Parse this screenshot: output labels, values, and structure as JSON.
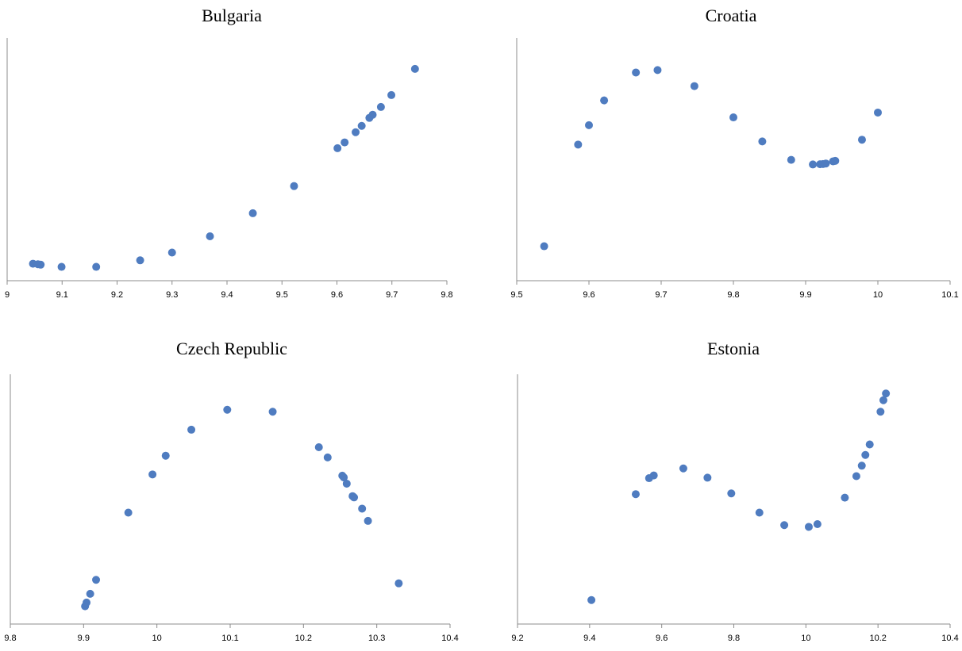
{
  "colors": {
    "point": "#4f7cc0",
    "axis": "#8c8c8c"
  },
  "chart_data": [
    {
      "type": "scatter",
      "title": "Bulgaria",
      "xlim": [
        9,
        9.8
      ],
      "xticks": [
        "9",
        "9.1",
        "9.2",
        "9.3",
        "9.4",
        "9.5",
        "9.6",
        "9.7",
        "9.8"
      ],
      "ylim": [
        0,
        100
      ],
      "y_axis_labels_shown": false,
      "grid": false,
      "x": [
        9.047,
        9.056,
        9.061,
        9.099,
        9.162,
        9.242,
        9.3,
        9.369,
        9.447,
        9.522,
        9.601,
        9.614,
        9.634,
        9.645,
        9.659,
        9.665,
        9.68,
        9.699,
        9.742
      ],
      "y": [
        7,
        6.8,
        6.6,
        5.7,
        5.7,
        8.4,
        11.6,
        18.3,
        27.8,
        39,
        54.6,
        57,
        61.2,
        63.8,
        67.1,
        68.4,
        71.6,
        76.5,
        87.3
      ]
    },
    {
      "type": "scatter",
      "title": "Croatia",
      "xlim": [
        9.5,
        10.1
      ],
      "xticks": [
        "9.5",
        "9.6",
        "9.7",
        "9.8",
        "9.9",
        "10",
        "10.1"
      ],
      "ylim": [
        0,
        100
      ],
      "y_axis_labels_shown": false,
      "grid": false,
      "x": [
        9.538,
        9.585,
        9.6,
        9.621,
        9.665,
        9.695,
        9.746,
        9.8,
        9.84,
        9.88,
        9.91,
        9.92,
        9.924,
        9.928,
        9.938,
        9.941,
        9.978,
        10
      ],
      "y": [
        14.2,
        56.1,
        64.1,
        74.3,
        85.8,
        86.8,
        80.2,
        67.3,
        57.4,
        49.8,
        47.9,
        48,
        48.1,
        48.3,
        49.2,
        49.4,
        58.1,
        69.3
      ]
    },
    {
      "type": "scatter",
      "title": "Czech Republic",
      "xlim": [
        9.8,
        10.4
      ],
      "xticks": [
        "9.8",
        "9.9",
        "10",
        "10.1",
        "10.2",
        "10.3",
        "10.4"
      ],
      "ylim": [
        0,
        100
      ],
      "y_axis_labels_shown": false,
      "grid": false,
      "x": [
        9.902,
        9.904,
        9.909,
        9.917,
        9.961,
        9.994,
        10.012,
        10.047,
        10.096,
        10.158,
        10.221,
        10.233,
        10.253,
        10.255,
        10.259,
        10.267,
        10.269,
        10.28,
        10.288,
        10.33
      ],
      "y": [
        7.1,
        8.6,
        12.1,
        17.7,
        44.6,
        59.9,
        67.4,
        77.8,
        85.8,
        85,
        70.8,
        66.7,
        59.4,
        58.7,
        56.2,
        51.2,
        50.7,
        46.2,
        41.3,
        16.3
      ]
    },
    {
      "type": "scatter",
      "title": "Estonia",
      "xlim": [
        9.2,
        10.4
      ],
      "xticks": [
        "9.2",
        "9.4",
        "9.6",
        "9.8",
        "10",
        "10.2",
        "10.4"
      ],
      "ylim": [
        0,
        100
      ],
      "y_axis_labels_shown": false,
      "grid": false,
      "x": [
        9.405,
        9.528,
        9.565,
        9.578,
        9.66,
        9.727,
        9.793,
        9.871,
        9.94,
        10.008,
        10.032,
        10.108,
        10.14,
        10.155,
        10.165,
        10.177,
        10.207,
        10.215,
        10.222
      ],
      "y": [
        9.6,
        52,
        58.4,
        59.5,
        62.3,
        58.6,
        52.3,
        44.6,
        39.6,
        38.9,
        40,
        50.6,
        59.2,
        63.4,
        67.7,
        71.9,
        85,
        89.6,
        92.3
      ]
    }
  ]
}
